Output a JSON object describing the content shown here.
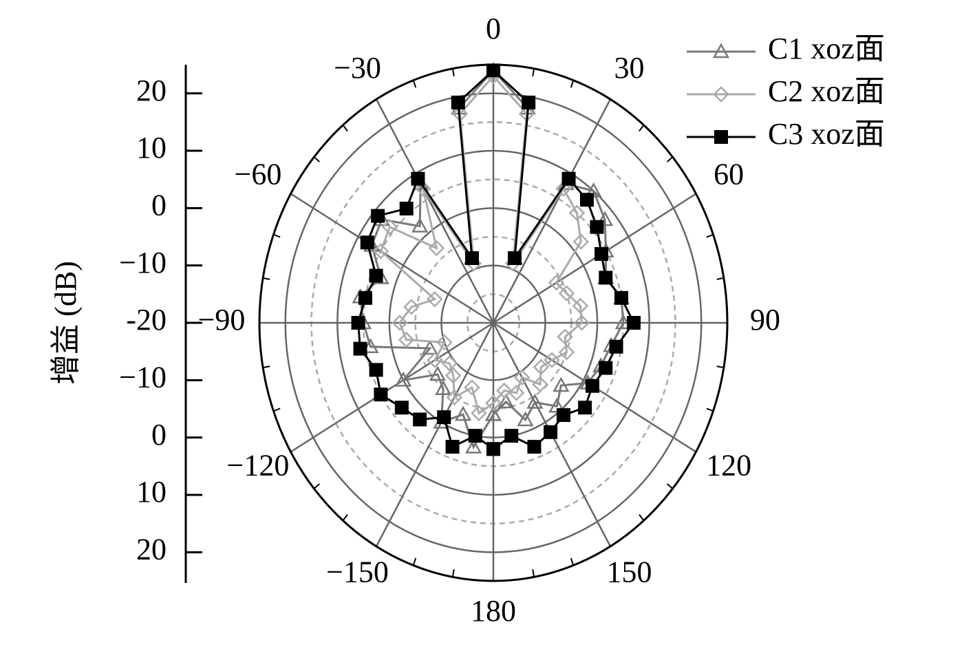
{
  "chart_data": {
    "type": "polar",
    "ylabel": "增益 (dB)",
    "rlim": [
      -20,
      25
    ],
    "rticks": [
      20,
      10,
      0,
      {
        "value": -10,
        "label": "−10"
      },
      {
        "value": -20,
        "label": "-20"
      }
    ],
    "rgrid": [
      -15,
      -10,
      -5,
      0,
      5,
      10,
      15,
      20
    ],
    "thetaticks": [
      0,
      30,
      60,
      90,
      120,
      150,
      180,
      {
        "value": -150,
        "label": "−150"
      },
      {
        "value": -120,
        "label": "−120"
      },
      {
        "value": -90,
        "label": "−90"
      },
      {
        "value": -60,
        "label": "−60"
      },
      {
        "value": -30,
        "label": "−30"
      }
    ],
    "theta": [
      -180,
      -170,
      -160,
      -150,
      -140,
      -130,
      -120,
      -110,
      -100,
      -90,
      -80,
      -70,
      -60,
      -50,
      -40,
      -30,
      -20,
      -10,
      0,
      10,
      20,
      30,
      40,
      50,
      60,
      70,
      80,
      90,
      100,
      110,
      120,
      130,
      140,
      150,
      160,
      170,
      180
    ],
    "series": [
      {
        "name": "C1 xoz面",
        "color": "#777777",
        "marker": "triangle",
        "values": [
          -4,
          2,
          -3,
          0,
          -5,
          -6,
          0,
          -7,
          4,
          5,
          6,
          3,
          7,
          8,
          2,
          8,
          -8,
          18,
          24,
          18,
          -8,
          8,
          10,
          8,
          5,
          3,
          5,
          5,
          3,
          2,
          1,
          -3,
          -1,
          -4,
          -2,
          -6,
          -4
        ]
      },
      {
        "name": "C2 xoz面",
        "color": "#aaaaaa",
        "marker": "diamond",
        "values": [
          -6,
          -4,
          -8,
          -5,
          -8,
          -9,
          -7,
          -10,
          -3,
          -2,
          -4,
          -8,
          5,
          6,
          -3,
          7,
          -9,
          17,
          23,
          17,
          -9,
          7,
          5,
          2,
          -6,
          -5,
          -3,
          -3,
          -6,
          -5,
          -7,
          -8,
          -6,
          -9,
          -7,
          -8,
          -6
        ]
      },
      {
        "name": "C3 xoz面",
        "color": "#000000",
        "marker": "square",
        "values": [
          2,
          0,
          3,
          -1,
          2,
          3,
          5,
          4,
          6,
          6,
          5,
          4,
          8,
          9,
          6,
          9,
          -8,
          19,
          24,
          19,
          -8,
          9,
          8,
          6,
          4,
          3,
          5,
          7,
          4,
          3,
          2,
          3,
          1,
          2,
          3,
          0,
          2
        ]
      }
    ],
    "legend": "upper right"
  }
}
